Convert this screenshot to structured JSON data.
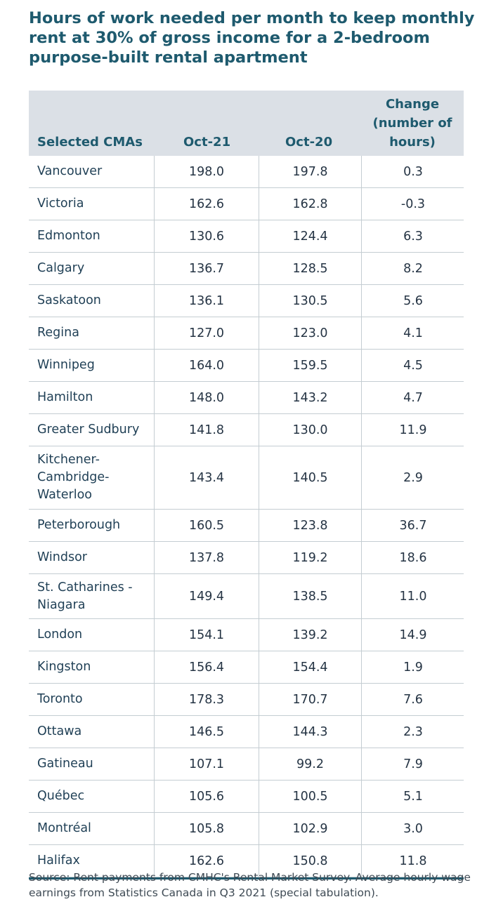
{
  "title": "Hours of work needed per month to keep monthly rent at 30% of gross income for a 2-bedroom purpose-built rental apartment",
  "table": {
    "headers": {
      "city": "Selected CMAs",
      "oct21": "Oct-21",
      "oct20": "Oct-20",
      "change": "Change (number of hours)"
    },
    "rows": [
      {
        "city": "Vancouver",
        "oct21": "198.0",
        "oct20": "197.8",
        "change": "0.3"
      },
      {
        "city": "Victoria",
        "oct21": "162.6",
        "oct20": "162.8",
        "change": "-0.3"
      },
      {
        "city": "Edmonton",
        "oct21": "130.6",
        "oct20": "124.4",
        "change": "6.3"
      },
      {
        "city": "Calgary",
        "oct21": "136.7",
        "oct20": "128.5",
        "change": "8.2"
      },
      {
        "city": "Saskatoon",
        "oct21": "136.1",
        "oct20": "130.5",
        "change": "5.6"
      },
      {
        "city": "Regina",
        "oct21": "127.0",
        "oct20": "123.0",
        "change": "4.1"
      },
      {
        "city": "Winnipeg",
        "oct21": "164.0",
        "oct20": "159.5",
        "change": "4.5"
      },
      {
        "city": "Hamilton",
        "oct21": "148.0",
        "oct20": "143.2",
        "change": "4.7"
      },
      {
        "city": "Greater Sudbury",
        "oct21": "141.8",
        "oct20": "130.0",
        "change": "11.9"
      },
      {
        "city": "Kitchener-Cambridge-Waterloo",
        "oct21": "143.4",
        "oct20": "140.5",
        "change": "2.9"
      },
      {
        "city": "Peterborough",
        "oct21": "160.5",
        "oct20": "123.8",
        "change": "36.7"
      },
      {
        "city": "Windsor",
        "oct21": "137.8",
        "oct20": "119.2",
        "change": "18.6"
      },
      {
        "city": "St. Catharines - Niagara",
        "oct21": "149.4",
        "oct20": "138.5",
        "change": "11.0"
      },
      {
        "city": "London",
        "oct21": "154.1",
        "oct20": "139.2",
        "change": "14.9"
      },
      {
        "city": "Kingston",
        "oct21": "156.4",
        "oct20": "154.4",
        "change": "1.9"
      },
      {
        "city": "Toronto",
        "oct21": "178.3",
        "oct20": "170.7",
        "change": "7.6"
      },
      {
        "city": "Ottawa",
        "oct21": "146.5",
        "oct20": "144.3",
        "change": "2.3"
      },
      {
        "city": "Gatineau",
        "oct21": "107.1",
        "oct20": "99.2",
        "change": "7.9"
      },
      {
        "city": "Québec",
        "oct21": "105.6",
        "oct20": "100.5",
        "change": "5.1"
      },
      {
        "city": "Montréal",
        "oct21": "105.8",
        "oct20": "102.9",
        "change": "3.0"
      },
      {
        "city": "Halifax",
        "oct21": "162.6",
        "oct20": "150.8",
        "change": "11.8"
      }
    ]
  },
  "source": "Source: Rent payments from CMHC's Rental Market Survey. Average hourly wage earnings from Statistics Canada in Q3 2021 (special tabulation)."
}
